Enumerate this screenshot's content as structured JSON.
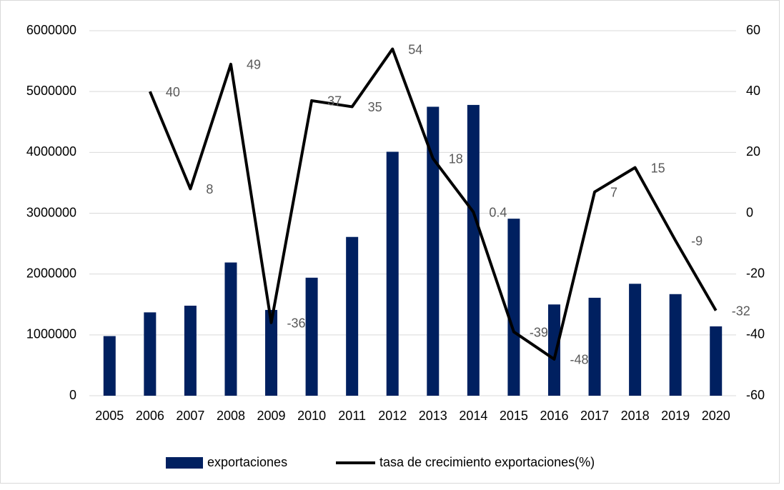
{
  "chart_data": {
    "type": "bar_line",
    "categories": [
      "2005",
      "2006",
      "2007",
      "2008",
      "2009",
      "2010",
      "2011",
      "2012",
      "2013",
      "2014",
      "2015",
      "2016",
      "2017",
      "2018",
      "2019",
      "2020"
    ],
    "series": [
      {
        "name": "exportaciones",
        "type": "bar",
        "color": "#002060",
        "values": [
          980000,
          1370000,
          1480000,
          2190000,
          1410000,
          1940000,
          2610000,
          4010000,
          4750000,
          4780000,
          2910000,
          1500000,
          1610000,
          1840000,
          1670000,
          1140000
        ]
      },
      {
        "name": "tasa de crecimiento exportaciones(%)",
        "type": "line",
        "axis": "y2",
        "color": "#000000",
        "values": [
          null,
          40,
          8,
          49,
          -36,
          37,
          35,
          54,
          18,
          0.4,
          -39,
          -48,
          7,
          15,
          -9,
          -32
        ]
      }
    ],
    "ylim": [
      0,
      6000000
    ],
    "yticks": [
      0,
      1000000,
      2000000,
      3000000,
      4000000,
      5000000,
      6000000
    ],
    "y2lim": [
      -60,
      60
    ],
    "y2ticks": [
      -60,
      -40,
      -20,
      0,
      20,
      40,
      60
    ],
    "grid": true,
    "legend": "bottom"
  }
}
